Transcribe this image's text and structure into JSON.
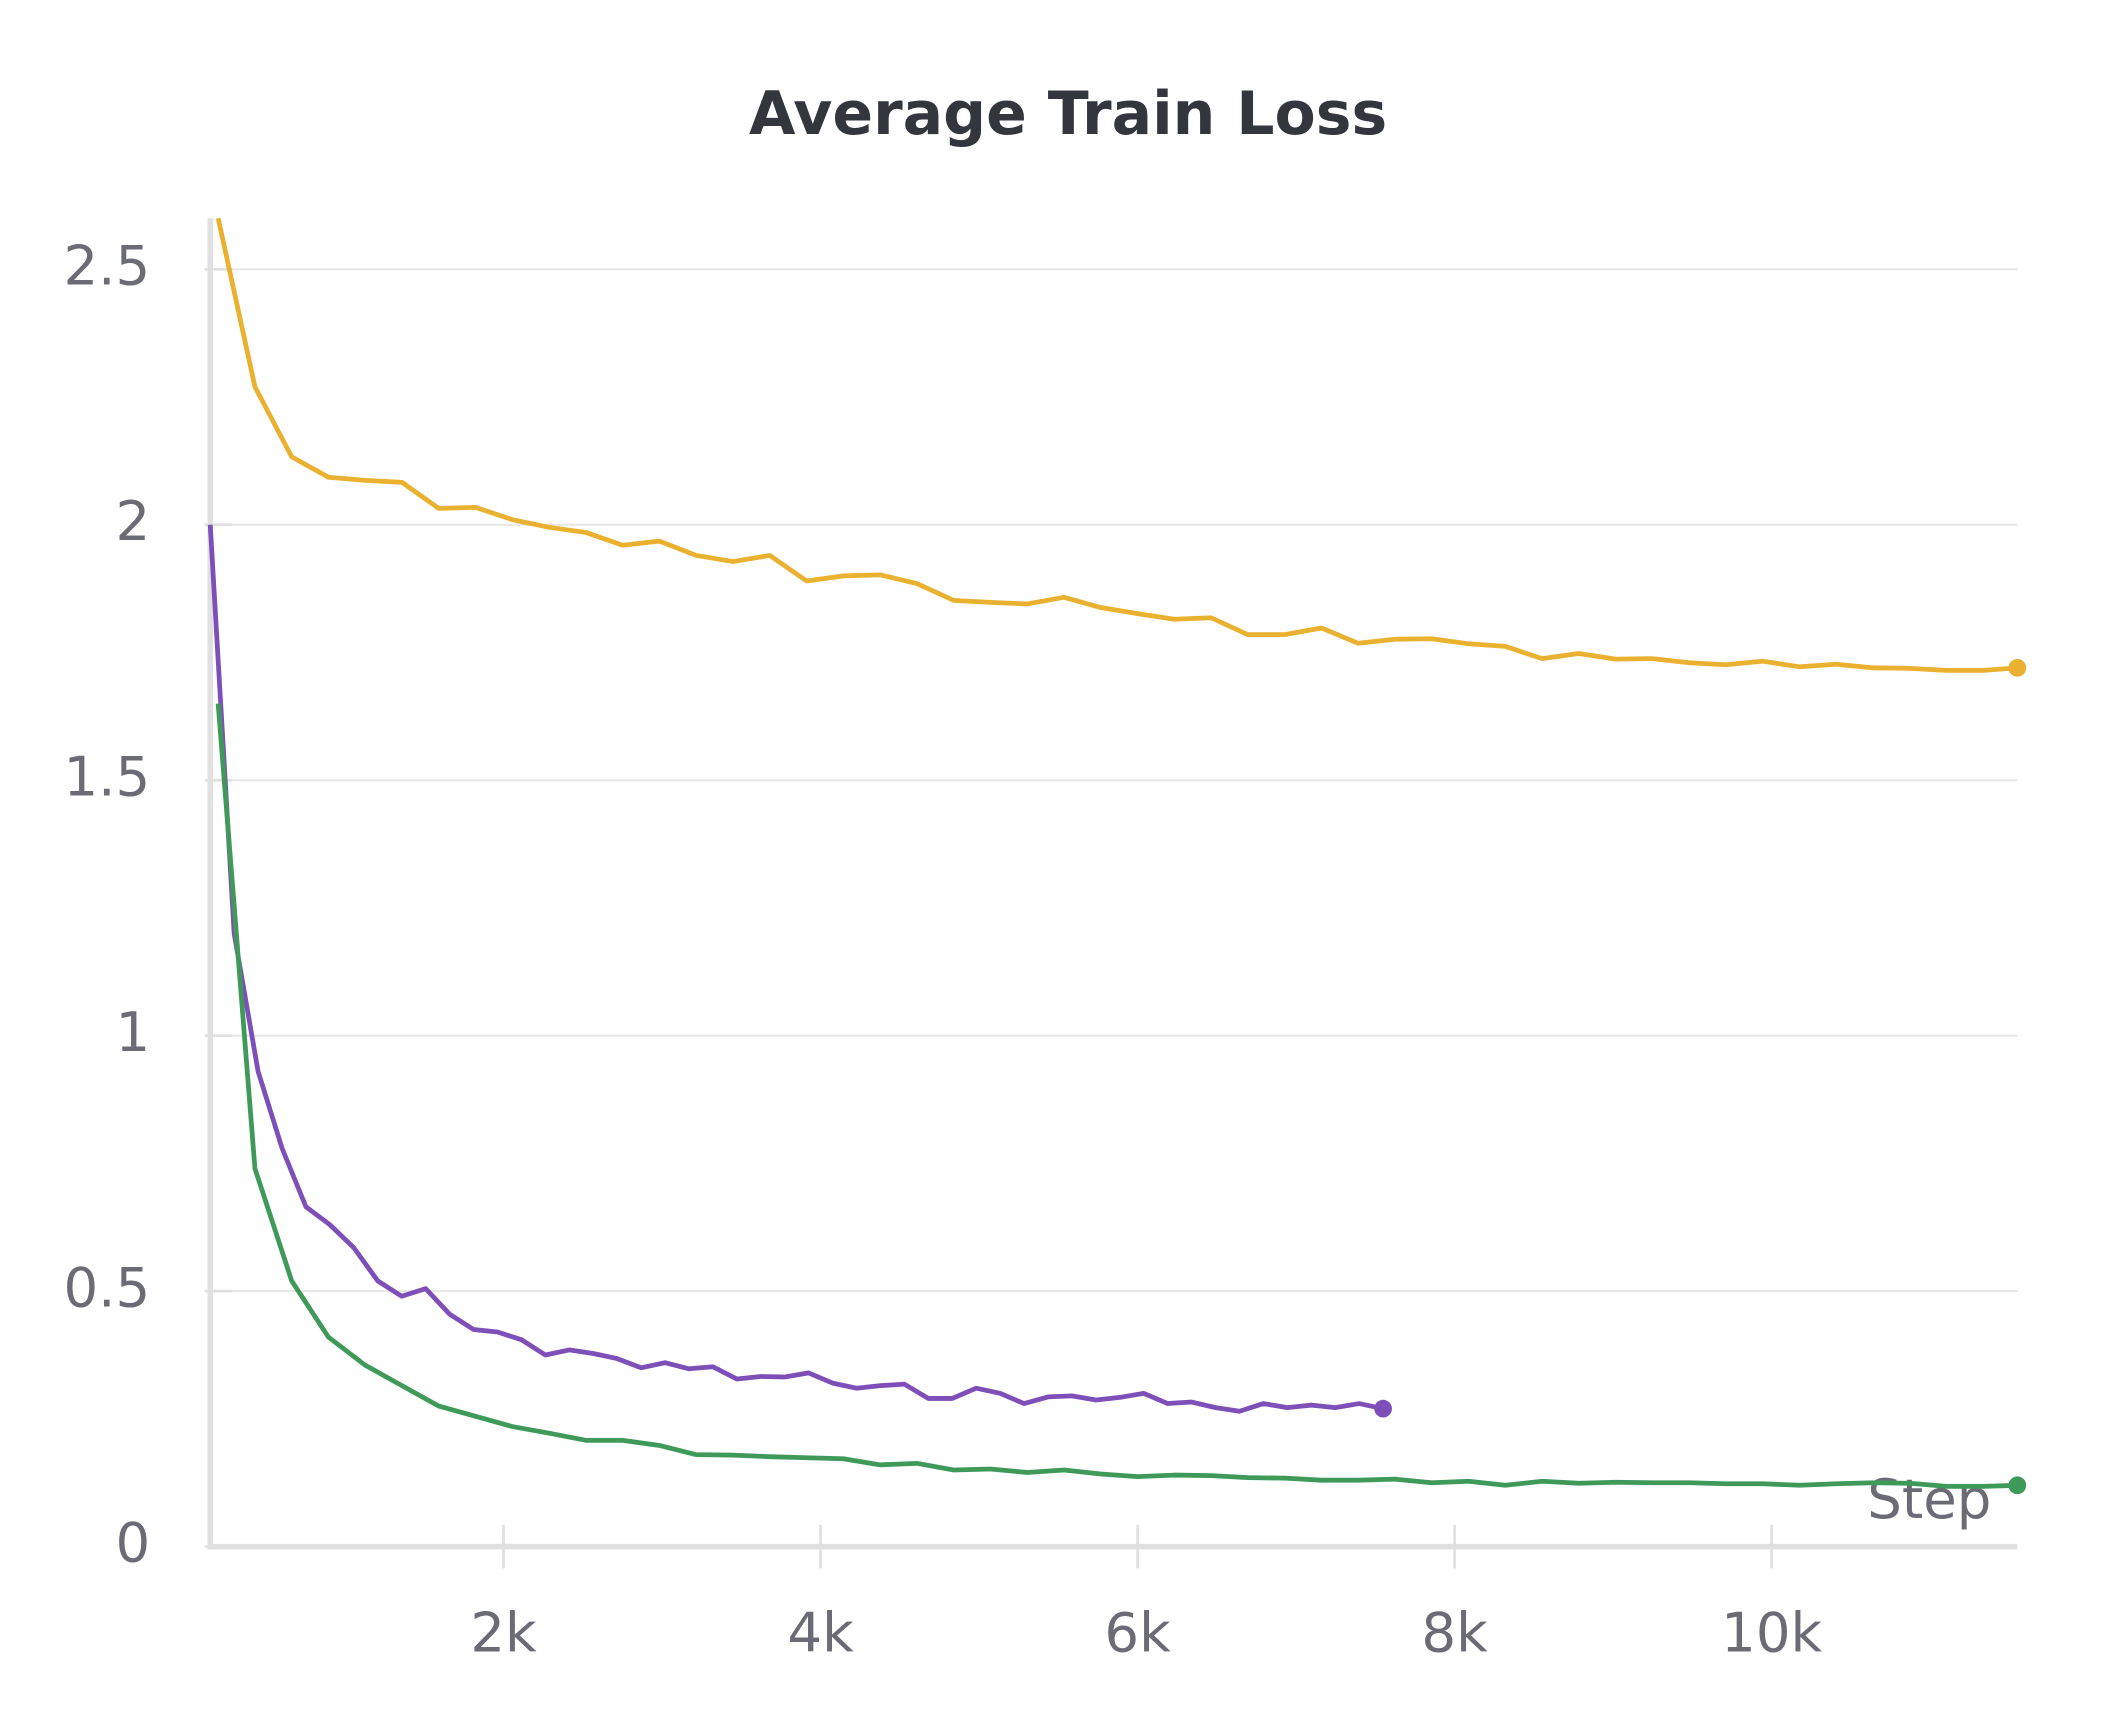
{
  "chart_data": {
    "type": "line",
    "title": "Average Train Loss",
    "x_label": "Step",
    "xlim": [
      150,
      11550
    ],
    "ylim": [
      0,
      2.6
    ],
    "xticks": [
      {
        "value": 2000,
        "label": "2k"
      },
      {
        "value": 4000,
        "label": "4k"
      },
      {
        "value": 6000,
        "label": "6k"
      },
      {
        "value": 8000,
        "label": "8k"
      },
      {
        "value": 10000,
        "label": "10k"
      }
    ],
    "yticks": [
      0,
      0.5,
      1,
      1.5,
      2,
      2.5
    ],
    "grid": true,
    "series": [
      {
        "color": "#e9b12f",
        "x": [
          200,
          432,
          664,
          896,
          1128,
          1360,
          1592,
          1824,
          2056,
          2288,
          2520,
          2752,
          2984,
          3216,
          3448,
          3680,
          3912,
          4144,
          4376,
          4608,
          4840,
          5072,
          5304,
          5536,
          5768,
          6000,
          6232,
          6464,
          6696,
          6928,
          7160,
          7392,
          7624,
          7856,
          8088,
          8320,
          8552,
          8784,
          9016,
          9248,
          9480,
          9712,
          9944,
          10176,
          10408,
          10640,
          10872,
          11104,
          11336,
          11550
        ],
        "values": [
          2.6,
          2.27,
          2.133,
          2.093,
          2.087,
          2.083,
          2.032,
          2.034,
          2.01,
          1.995,
          1.985,
          1.96,
          1.968,
          1.94,
          1.928,
          1.94,
          1.89,
          1.9,
          1.902,
          1.885,
          1.852,
          1.848,
          1.845,
          1.858,
          1.838,
          1.826,
          1.815,
          1.818,
          1.785,
          1.785,
          1.798,
          1.768,
          1.776,
          1.777,
          1.767,
          1.762,
          1.738,
          1.748,
          1.737,
          1.738,
          1.73,
          1.726,
          1.733,
          1.722,
          1.727,
          1.72,
          1.719,
          1.715,
          1.715,
          1.72
        ]
      },
      {
        "color": "#7e4fb8",
        "x": [
          150,
          301,
          452,
          603,
          754,
          905,
          1056,
          1207,
          1358,
          1509,
          1660,
          1811,
          1962,
          2113,
          2264,
          2415,
          2566,
          2717,
          2868,
          3019,
          3170,
          3321,
          3472,
          3623,
          3774,
          3925,
          4076,
          4227,
          4378,
          4529,
          4680,
          4831,
          4982,
          5133,
          5284,
          5435,
          5586,
          5737,
          5888,
          6039,
          6190,
          6341,
          6492,
          6643,
          6794,
          6945,
          7096,
          7247,
          7398,
          7549
        ],
        "values": [
          2.0,
          1.2,
          0.93,
          0.78,
          0.665,
          0.63,
          0.585,
          0.52,
          0.49,
          0.505,
          0.455,
          0.425,
          0.42,
          0.405,
          0.375,
          0.385,
          0.378,
          0.368,
          0.35,
          0.36,
          0.348,
          0.352,
          0.328,
          0.333,
          0.332,
          0.34,
          0.32,
          0.31,
          0.315,
          0.318,
          0.29,
          0.29,
          0.31,
          0.3,
          0.28,
          0.293,
          0.295,
          0.287,
          0.292,
          0.3,
          0.28,
          0.283,
          0.272,
          0.265,
          0.28,
          0.272,
          0.277,
          0.272,
          0.28,
          0.27
        ]
      },
      {
        "color": "#3f9a5a",
        "x": [
          200,
          432,
          664,
          896,
          1128,
          1360,
          1592,
          1824,
          2056,
          2288,
          2520,
          2752,
          2984,
          3216,
          3448,
          3680,
          3912,
          4144,
          4376,
          4608,
          4840,
          5072,
          5304,
          5536,
          5768,
          6000,
          6232,
          6464,
          6696,
          6928,
          7160,
          7392,
          7624,
          7856,
          8088,
          8320,
          8552,
          8784,
          9016,
          9248,
          9480,
          9712,
          9944,
          10176,
          10408,
          10640,
          10872,
          11104,
          11336,
          11550
        ],
        "values": [
          1.65,
          0.74,
          0.52,
          0.41,
          0.355,
          0.315,
          0.275,
          0.255,
          0.235,
          0.222,
          0.208,
          0.208,
          0.198,
          0.18,
          0.179,
          0.176,
          0.174,
          0.172,
          0.16,
          0.163,
          0.15,
          0.152,
          0.145,
          0.15,
          0.142,
          0.137,
          0.14,
          0.139,
          0.135,
          0.134,
          0.13,
          0.13,
          0.132,
          0.125,
          0.128,
          0.12,
          0.128,
          0.124,
          0.126,
          0.125,
          0.125,
          0.123,
          0.123,
          0.12,
          0.123,
          0.125,
          0.124,
          0.118,
          0.118,
          0.12
        ]
      }
    ]
  }
}
